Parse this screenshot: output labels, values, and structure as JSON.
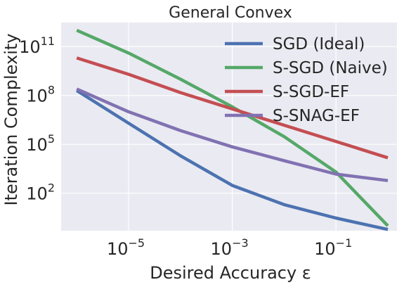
{
  "chart_data": {
    "type": "line",
    "title": "General Convex",
    "xlabel": "Desired Accuracy ε",
    "ylabel": "Iteration Complexity",
    "x_scale": "log",
    "y_scale": "log",
    "xlim": [
      5e-07,
      1.5
    ],
    "ylim": [
      0.5,
      3000000000000.0
    ],
    "grid": true,
    "legend_position": "top-right",
    "x_ticks": [
      {
        "value": 1e-05,
        "base": "10",
        "exp": "−5"
      },
      {
        "value": 0.001,
        "base": "10",
        "exp": "−3"
      },
      {
        "value": 0.1,
        "base": "10",
        "exp": "−1"
      }
    ],
    "y_ticks": [
      {
        "value": 100,
        "base": "10",
        "exp": "2"
      },
      {
        "value": 100000.0,
        "base": "10",
        "exp": "5"
      },
      {
        "value": 100000000.0,
        "base": "10",
        "exp": "8"
      },
      {
        "value": 100000000000.0,
        "base": "10",
        "exp": "11"
      }
    ],
    "series": [
      {
        "name": "SGD (Ideal)",
        "color": "#4c72b0",
        "x": [
          1e-06,
          1e-05,
          0.0001,
          0.001,
          0.01,
          0.1,
          1
        ],
        "y": [
          200000000.0,
          2000000.0,
          20000.0,
          300,
          20,
          3,
          0.6
        ]
      },
      {
        "name": "S-SGD (Naive)",
        "color": "#55a868",
        "x": [
          1e-06,
          1e-05,
          0.0001,
          0.001,
          0.01,
          0.1,
          1
        ],
        "y": [
          1000000000000.0,
          40000000000.0,
          1000000000.0,
          20000000.0,
          300000.0,
          2000.0,
          1
        ]
      },
      {
        "name": "S-SGD-EF",
        "color": "#c44e52",
        "x": [
          1e-06,
          1e-05,
          0.0001,
          0.001,
          0.01,
          0.1,
          1
        ],
        "y": [
          20000000000.0,
          2000000000.0,
          150000000.0,
          15000000.0,
          1500000.0,
          150000.0,
          15000.0
        ]
      },
      {
        "name": "S-SNAG-EF",
        "color": "#8172b2",
        "x": [
          1e-06,
          1e-05,
          0.0001,
          0.001,
          0.01,
          0.1,
          1
        ],
        "y": [
          250000000.0,
          10000000.0,
          700000.0,
          70000.0,
          10000.0,
          1500.0,
          600
        ]
      }
    ]
  }
}
